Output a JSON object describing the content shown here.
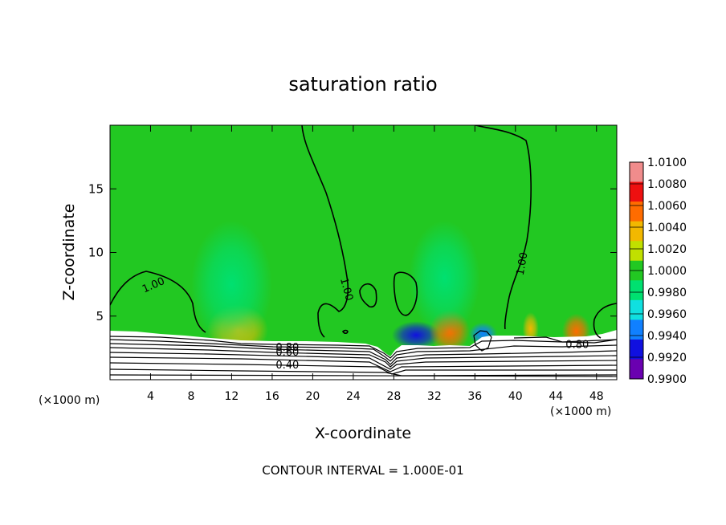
{
  "chart_data": {
    "type": "heatmap",
    "title": "saturation ratio",
    "xlabel": "X-coordinate",
    "ylabel": "Z-coordinate",
    "x_unit_left": "(×1000 m)",
    "x_unit_right": "(×1000 m)",
    "footer": "CONTOUR INTERVAL = 1.000E-01",
    "xlim": [
      0,
      50
    ],
    "ylim": [
      0,
      20
    ],
    "x_ticks": [
      4,
      8,
      12,
      16,
      20,
      24,
      28,
      32,
      36,
      40,
      44,
      48
    ],
    "y_ticks": [
      5,
      10,
      15
    ],
    "colorbar": {
      "levels": [
        "1.0100",
        "1.0080",
        "1.0060",
        "1.0040",
        "1.0020",
        "1.0000",
        "0.9980",
        "0.9960",
        "0.9940",
        "0.9920",
        "0.9900"
      ],
      "colors": [
        "#f08c8c",
        "#ee1010",
        "#ff6c00",
        "#f2b800",
        "#c0e000",
        "#22c822",
        "#00e070",
        "#10e0e0",
        "#1080ff",
        "#1010e0",
        "#6a00b0"
      ]
    },
    "background_value": "1.0000",
    "contour_labels": [
      {
        "text": "1.00",
        "x": 4.3,
        "z": 7.4,
        "angle": -24
      },
      {
        "text": "1.00",
        "x": 23.3,
        "z": 7.1,
        "angle": 75
      },
      {
        "text": "1.00",
        "x": 40.7,
        "z": 9.1,
        "angle": -80
      },
      {
        "text": "0.80",
        "x": 17.5,
        "z": 2.5,
        "angle": 0
      },
      {
        "text": "0.60",
        "x": 17.5,
        "z": 2.1,
        "angle": 0
      },
      {
        "text": "0.40",
        "x": 17.5,
        "z": 1.1,
        "angle": 0
      },
      {
        "text": "0.80",
        "x": 46.1,
        "z": 2.7,
        "angle": 0
      }
    ],
    "anomalies": [
      {
        "x": 12.6,
        "z": 3.9,
        "value": "1.0040",
        "rx": 3.0,
        "rz": 2.0
      },
      {
        "x": 12.0,
        "z": 7.5,
        "value": "0.9980",
        "rx": 4.0,
        "rz": 5.0
      },
      {
        "x": 30.2,
        "z": 3.5,
        "value": "0.9920",
        "rx": 2.4,
        "rz": 1.1
      },
      {
        "x": 33.5,
        "z": 3.8,
        "value": "1.0060",
        "rx": 2.0,
        "rz": 1.7
      },
      {
        "x": 33.0,
        "z": 8.0,
        "value": "0.9980",
        "rx": 3.5,
        "rz": 4.5
      },
      {
        "x": 36.8,
        "z": 3.6,
        "value": "0.9940",
        "rx": 1.4,
        "rz": 0.9
      },
      {
        "x": 41.5,
        "z": 4.0,
        "value": "1.0040",
        "rx": 0.8,
        "rz": 1.3
      },
      {
        "x": 46.0,
        "z": 3.8,
        "value": "1.0060",
        "rx": 1.4,
        "rz": 1.4
      }
    ]
  }
}
